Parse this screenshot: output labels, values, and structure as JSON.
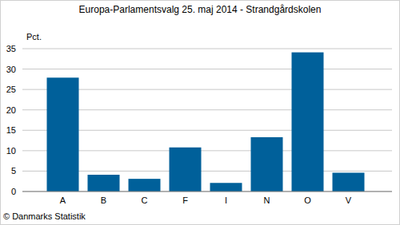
{
  "chart_data": {
    "type": "bar",
    "title": "Europa-Parlamentsvalg 25. maj 2014 - Strandgårdskolen",
    "ylabel": "Pct.",
    "categories": [
      "A",
      "B",
      "C",
      "F",
      "I",
      "N",
      "O",
      "V"
    ],
    "values": [
      27.9,
      4.1,
      3.1,
      10.8,
      2.1,
      13.3,
      34.1,
      4.6
    ],
    "color": "#00609a",
    "ylim": [
      0,
      35
    ],
    "yticks": [
      0,
      5,
      10,
      15,
      20,
      25,
      30,
      35
    ],
    "grid": true,
    "annotations": [
      "© Danmarks Statistik"
    ]
  }
}
